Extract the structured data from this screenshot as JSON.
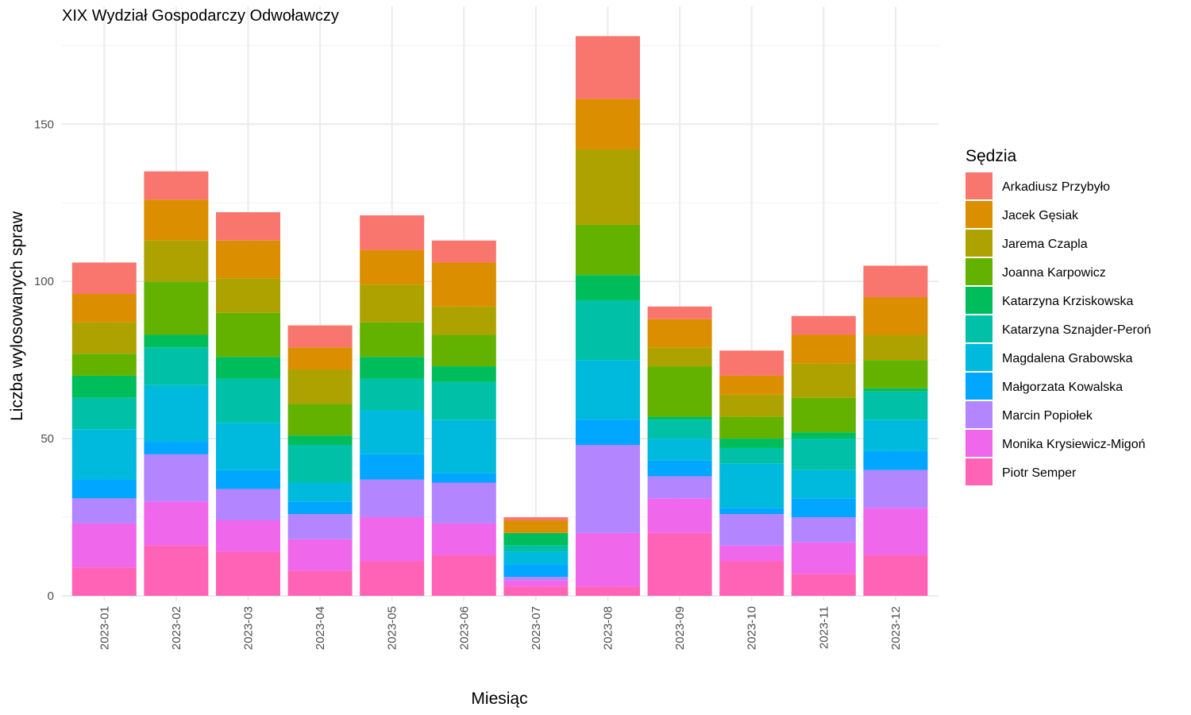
{
  "chart_data": {
    "type": "bar",
    "stacked": true,
    "title": "XIX Wydział Gospodarczy Odwoławczy",
    "xlabel": "Miesiąc",
    "ylabel": "Liczba wylosowanych spraw",
    "ylim": [
      0,
      185
    ],
    "yticks": [
      0,
      50,
      100,
      150
    ],
    "grid": true,
    "legend_title": "Sędzia",
    "legend_position": "right",
    "categories": [
      "2023-01",
      "2023-02",
      "2023-03",
      "2023-04",
      "2023-05",
      "2023-06",
      "2023-07",
      "2023-08",
      "2023-09",
      "2023-10",
      "2023-11",
      "2023-12"
    ],
    "series": [
      {
        "name": "Arkadiusz Przybyło",
        "color": "#F8766D",
        "values": [
          10,
          9,
          9,
          7,
          11,
          7,
          1,
          20,
          4,
          8,
          6,
          10
        ]
      },
      {
        "name": "Jacek Gęsiak",
        "color": "#DB8E00",
        "values": [
          9,
          13,
          12,
          7,
          11,
          14,
          4,
          16,
          9,
          6,
          9,
          12
        ]
      },
      {
        "name": "Jarema Czapla",
        "color": "#AEA200",
        "values": [
          10,
          13,
          11,
          11,
          12,
          9,
          0,
          24,
          6,
          7,
          11,
          8
        ]
      },
      {
        "name": "Joanna Karpowicz",
        "color": "#64B200",
        "values": [
          7,
          17,
          14,
          10,
          11,
          10,
          0,
          16,
          16,
          7,
          11,
          9
        ]
      },
      {
        "name": "Katarzyna Krziskowska",
        "color": "#00BD5C",
        "values": [
          7,
          4,
          7,
          3,
          7,
          5,
          4,
          8,
          1,
          3,
          2,
          1
        ]
      },
      {
        "name": "Katarzyna Sznajder-Peroń",
        "color": "#00C1A7",
        "values": [
          10,
          12,
          14,
          12,
          10,
          12,
          2,
          19,
          6,
          5,
          10,
          9
        ]
      },
      {
        "name": "Magdalena Grabowska",
        "color": "#00BADE",
        "values": [
          16,
          18,
          15,
          6,
          14,
          17,
          4,
          19,
          7,
          14,
          9,
          10
        ]
      },
      {
        "name": "Małgorzata Kowalska",
        "color": "#00A6FF",
        "values": [
          6,
          4,
          6,
          4,
          8,
          3,
          4,
          8,
          5,
          2,
          6,
          6
        ]
      },
      {
        "name": "Marcin Popiołek",
        "color": "#B385FF",
        "values": [
          8,
          15,
          10,
          8,
          12,
          13,
          1,
          28,
          7,
          10,
          8,
          12
        ]
      },
      {
        "name": "Monika Krysiewicz-Migoń",
        "color": "#EF67EB",
        "values": [
          14,
          14,
          10,
          10,
          14,
          10,
          2,
          17,
          11,
          5,
          10,
          15
        ]
      },
      {
        "name": "Piotr Semper",
        "color": "#FF63B6",
        "values": [
          9,
          16,
          14,
          8,
          11,
          13,
          3,
          3,
          20,
          11,
          7,
          13
        ]
      }
    ]
  }
}
